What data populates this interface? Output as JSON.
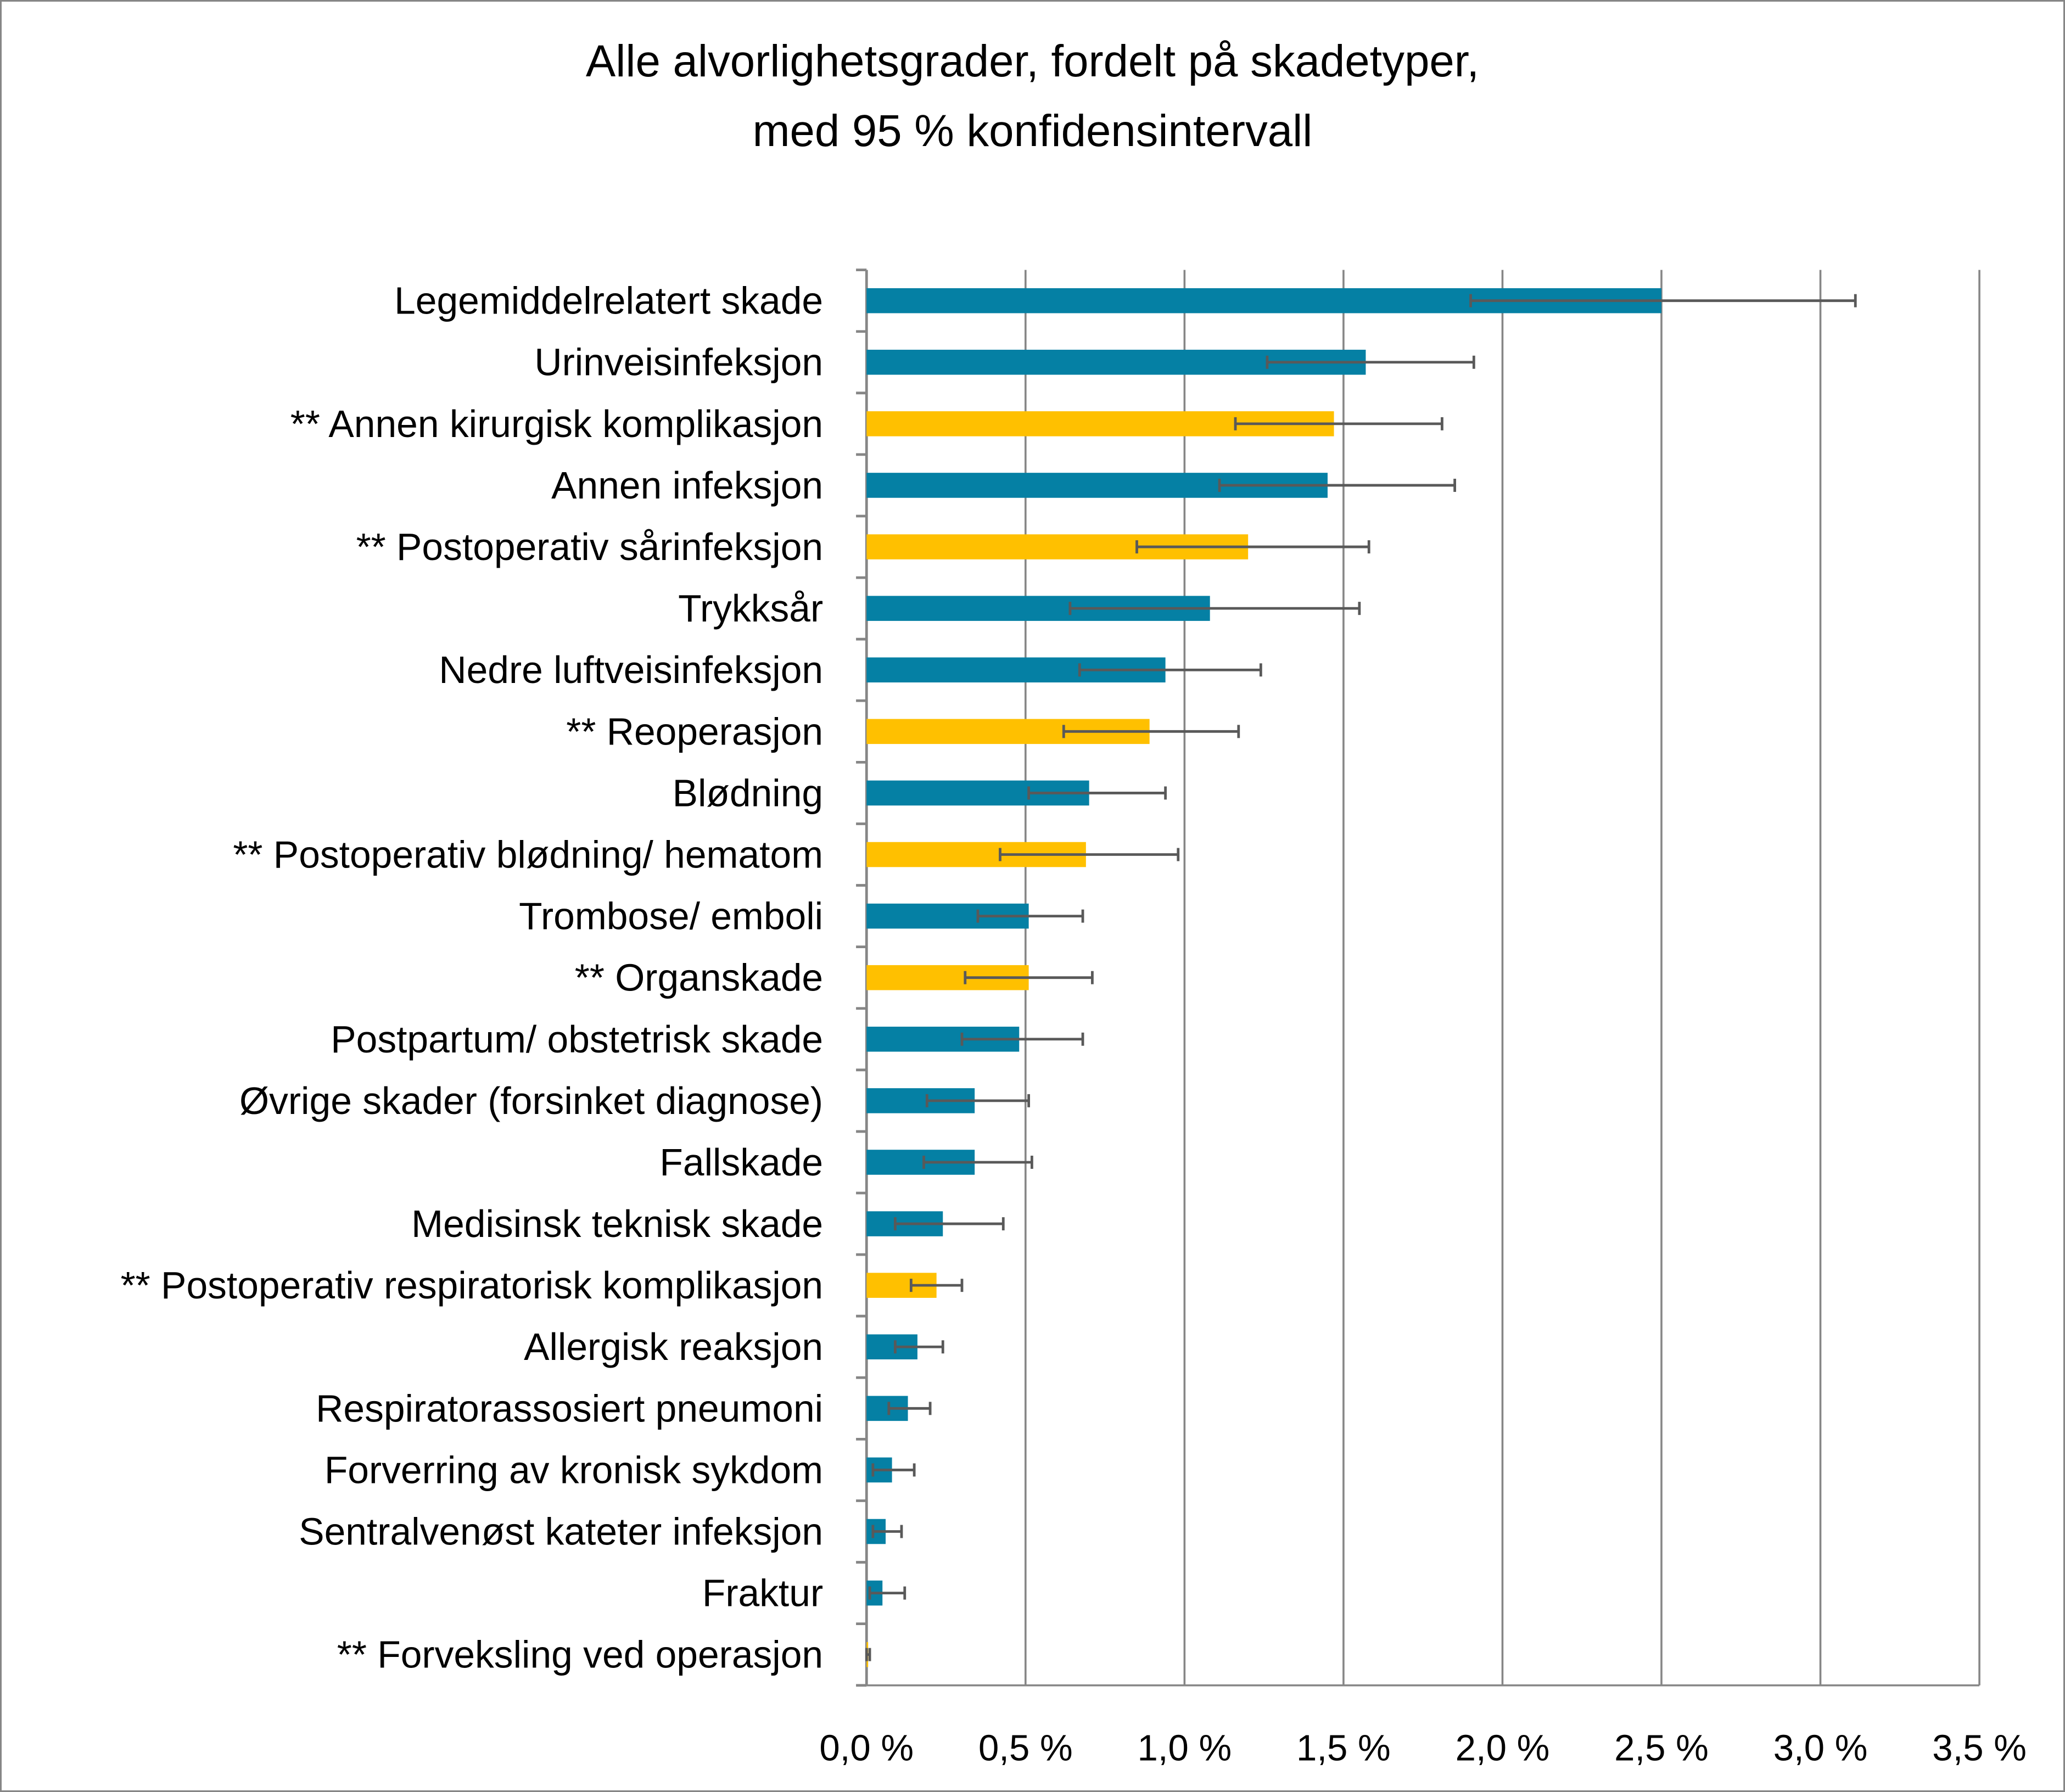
{
  "chart_data": {
    "type": "bar",
    "orientation": "horizontal",
    "title": [
      "Alle alvorlighetsgrader, fordelt på skadetyper,",
      "med 95 % konfidensintervall"
    ],
    "xlabel": "",
    "ylabel": "",
    "xlim": [
      0,
      3.5
    ],
    "x_ticks": [
      0,
      0.5,
      1.0,
      1.5,
      2.0,
      2.5,
      3.0,
      3.5
    ],
    "x_tick_labels": [
      "0,0 %",
      "0,5 %",
      "1,0 %",
      "1,5 %",
      "2,0 %",
      "2,5 %",
      "3,0 %",
      "3,5 %"
    ],
    "grid": "vertical",
    "legend": "none",
    "colors": {
      "general": "#0580A4",
      "surgical": "#FFC000",
      "error_bar": "#595959",
      "grid": "#868686"
    },
    "categories": [
      "Legemiddelrelatert skade",
      "Urinveisinfeksjon",
      "** Annen kirurgisk komplikasjon",
      "Annen infeksjon",
      "** Postoperativ sårinfeksjon",
      "Trykksår",
      "Nedre luftveisinfeksjon",
      "** Reoperasjon",
      "Blødning",
      "** Postoperativ blødning/ hematom",
      "Trombose/ emboli",
      "** Organskade",
      "Postpartum/ obstetrisk skade",
      "Øvrige skader (forsinket diagnose)",
      "Fallskade",
      "Medisinsk teknisk skade",
      "** Postoperativ respiratorisk komplikasjon",
      "Allergisk reaksjon",
      "Respiratorassosiert pneumoni",
      "Forverring av kronisk sykdom",
      "Sentralvenøst kateter infeksjon",
      "Fraktur",
      "** Forveksling ved operasjon"
    ],
    "values": [
      2.5,
      1.57,
      1.47,
      1.45,
      1.2,
      1.08,
      0.94,
      0.89,
      0.7,
      0.69,
      0.51,
      0.51,
      0.48,
      0.34,
      0.34,
      0.24,
      0.22,
      0.16,
      0.13,
      0.08,
      0.06,
      0.05,
      0.005
    ],
    "ci_low": [
      1.9,
      1.26,
      1.16,
      1.11,
      0.85,
      0.64,
      0.67,
      0.62,
      0.51,
      0.42,
      0.35,
      0.31,
      0.3,
      0.19,
      0.18,
      0.09,
      0.14,
      0.09,
      0.07,
      0.02,
      0.02,
      0.01,
      0.0
    ],
    "ci_high": [
      3.11,
      1.91,
      1.81,
      1.85,
      1.58,
      1.55,
      1.24,
      1.17,
      0.94,
      0.98,
      0.68,
      0.71,
      0.68,
      0.51,
      0.52,
      0.43,
      0.3,
      0.24,
      0.2,
      0.15,
      0.11,
      0.12,
      0.01
    ],
    "groups": [
      "general",
      "general",
      "surgical",
      "general",
      "surgical",
      "general",
      "general",
      "surgical",
      "general",
      "surgical",
      "general",
      "surgical",
      "general",
      "general",
      "general",
      "general",
      "surgical",
      "general",
      "general",
      "general",
      "general",
      "general",
      "surgical"
    ]
  }
}
